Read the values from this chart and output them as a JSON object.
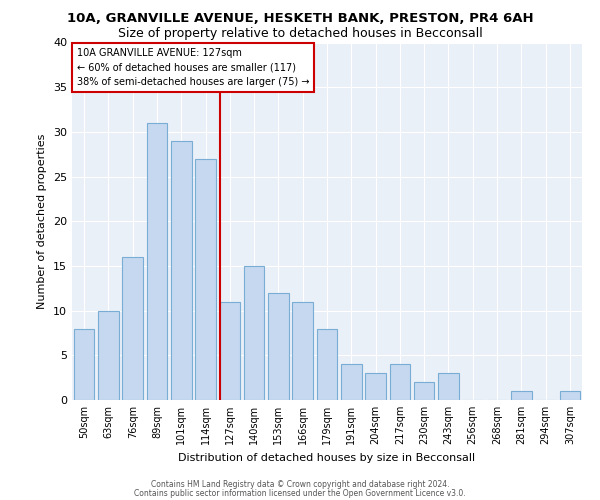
{
  "title1": "10A, GRANVILLE AVENUE, HESKETH BANK, PRESTON, PR4 6AH",
  "title2": "Size of property relative to detached houses in Becconsall",
  "xlabel": "Distribution of detached houses by size in Becconsall",
  "ylabel": "Number of detached properties",
  "categories": [
    "50sqm",
    "63sqm",
    "76sqm",
    "89sqm",
    "101sqm",
    "114sqm",
    "127sqm",
    "140sqm",
    "153sqm",
    "166sqm",
    "179sqm",
    "191sqm",
    "204sqm",
    "217sqm",
    "230sqm",
    "243sqm",
    "256sqm",
    "268sqm",
    "281sqm",
    "294sqm",
    "307sqm"
  ],
  "values": [
    8,
    10,
    16,
    31,
    29,
    27,
    11,
    15,
    12,
    11,
    8,
    4,
    3,
    4,
    2,
    3,
    0,
    0,
    1,
    0,
    1
  ],
  "bar_color": "#c5d8f0",
  "bar_edge_color": "#7aadd4",
  "highlight_index": 6,
  "annotation_text": "10A GRANVILLE AVENUE: 127sqm\n← 60% of detached houses are smaller (117)\n38% of semi-detached houses are larger (75) →",
  "annotation_box_color": "#ffffff",
  "annotation_box_edge_color": "#cc0000",
  "vline_color": "#cc0000",
  "ylim": [
    0,
    40
  ],
  "yticks": [
    0,
    5,
    10,
    15,
    20,
    25,
    30,
    35,
    40
  ],
  "footer1": "Contains HM Land Registry data © Crown copyright and database right 2024.",
  "footer2": "Contains public sector information licensed under the Open Government Licence v3.0.",
  "bg_color": "#eaf0f8",
  "grid_color": "#ffffff",
  "fig_bg_color": "#ffffff",
  "title1_fontsize": 9.5,
  "title2_fontsize": 9,
  "bar_width": 0.85
}
